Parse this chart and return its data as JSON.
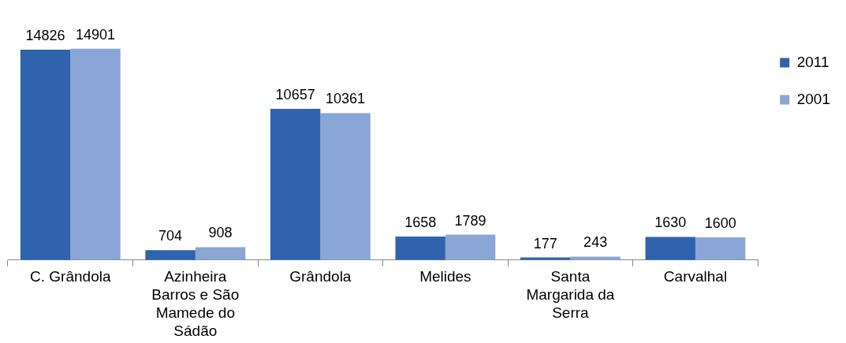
{
  "chart_data": {
    "type": "bar",
    "categories": [
      "C. Grândola",
      "Azinheira Barros e São Mamede do Sádão",
      "Grândola",
      "Melides",
      "Santa Margarida da Serra",
      "Carvalhal"
    ],
    "series": [
      {
        "name": "2011",
        "color": "#2f63ad",
        "values": [
          14826,
          704,
          10657,
          1658,
          177,
          1630
        ]
      },
      {
        "name": "2001",
        "color": "#8aa6d6",
        "values": [
          14901,
          908,
          10361,
          1789,
          243,
          1600
        ]
      }
    ],
    "data_labels": true,
    "legend": "right",
    "grid": false
  }
}
